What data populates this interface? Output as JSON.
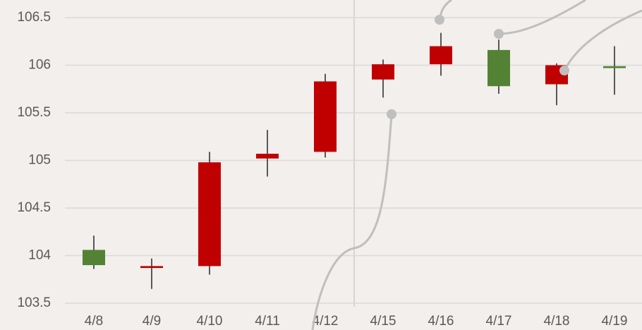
{
  "chart_data": {
    "type": "candlestick",
    "categories": [
      "4/8",
      "4/9",
      "4/10",
      "4/11",
      "4/12",
      "4/15",
      "4/16",
      "4/17",
      "4/18",
      "4/19"
    ],
    "open": [
      104.06,
      103.87,
      103.89,
      105.02,
      105.09,
      105.85,
      106.01,
      106.16,
      105.8,
      105.99
    ],
    "high": [
      104.21,
      103.97,
      105.09,
      105.32,
      105.91,
      106.06,
      106.34,
      106.27,
      106.02,
      106.2
    ],
    "low": [
      103.86,
      103.65,
      103.8,
      104.83,
      105.03,
      105.66,
      105.89,
      105.7,
      105.58,
      105.69
    ],
    "close": [
      103.9,
      103.89,
      104.98,
      105.07,
      105.83,
      106.01,
      106.2,
      105.78,
      106.0,
      105.97
    ],
    "up_color": "#c00000",
    "down_color": "#548235",
    "ylim": [
      103.5,
      106.5
    ],
    "yticks": [
      103.5,
      104,
      104.5,
      105,
      105.5,
      106,
      106.5
    ],
    "grid": true
  }
}
